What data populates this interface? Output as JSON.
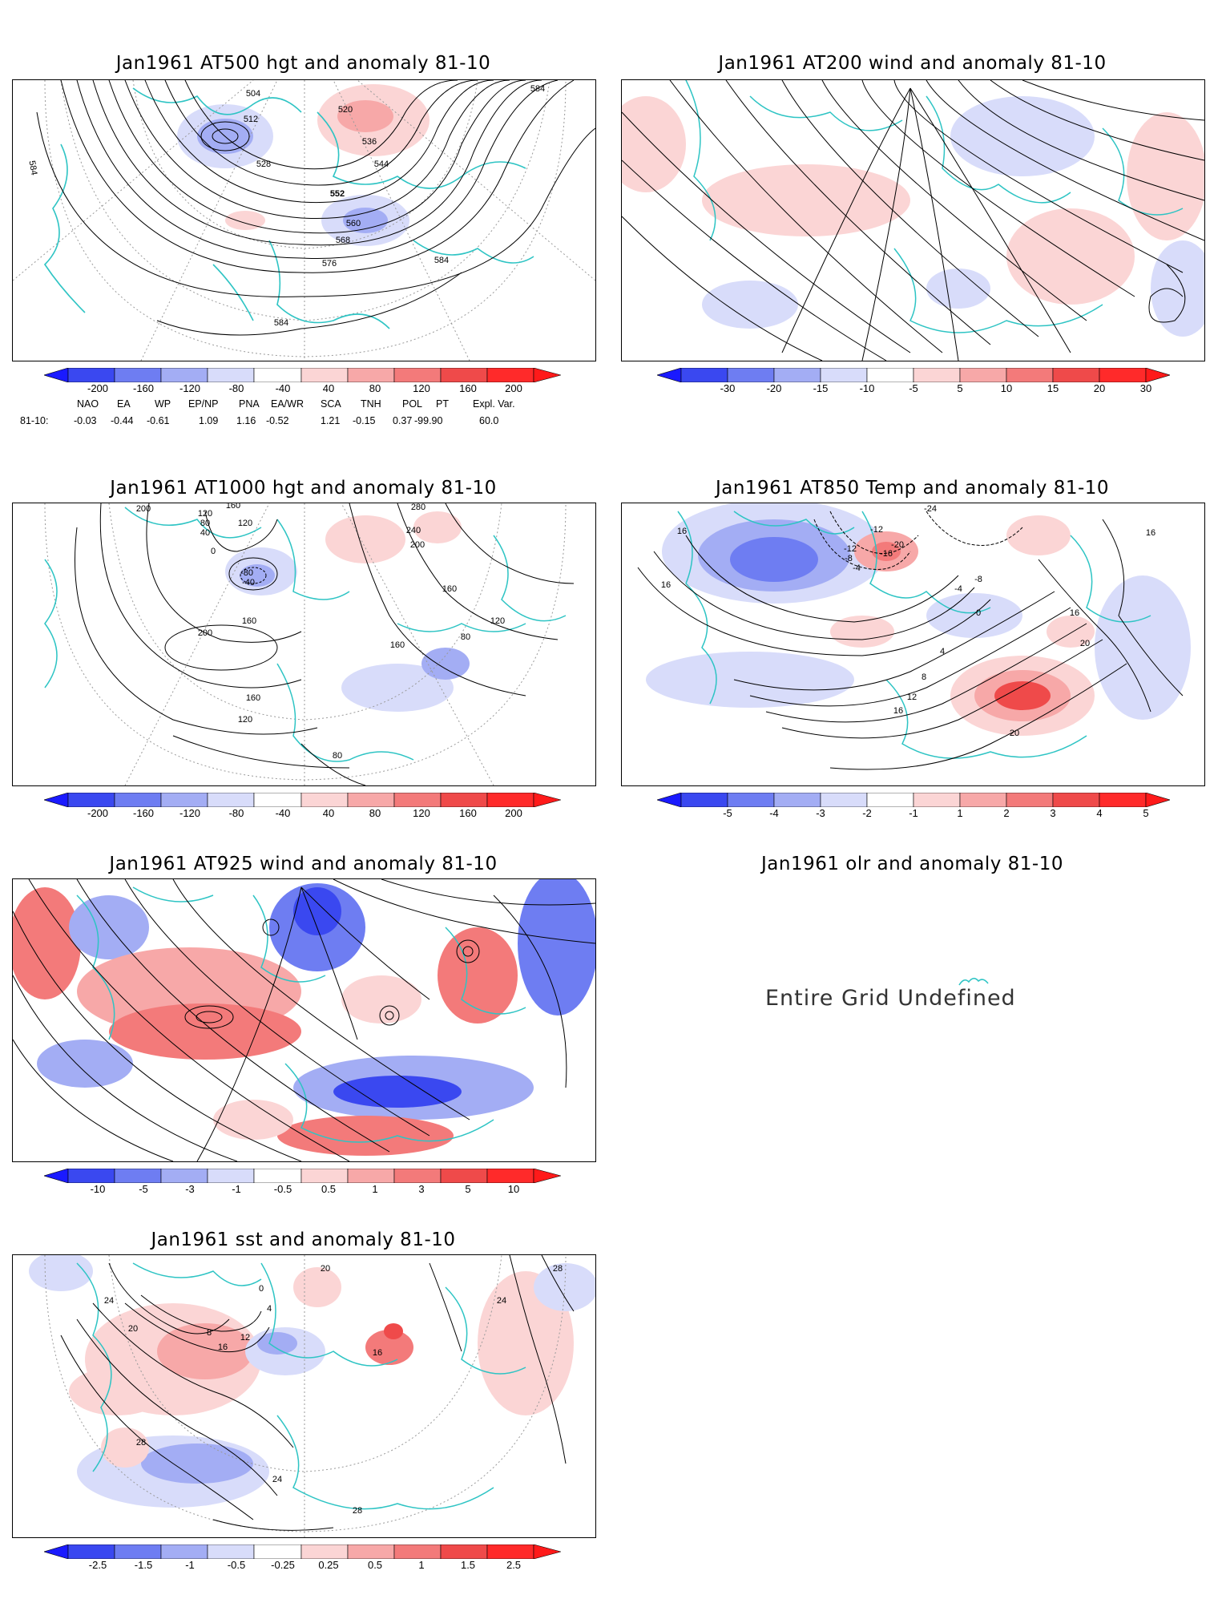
{
  "panels": [
    {
      "id": "p1",
      "title": "Jan1961 AT500 hgt and anomaly 81-10",
      "contour_labels": [
        "504",
        "512",
        "520",
        "528",
        "536",
        "544",
        "552",
        "560",
        "568",
        "576",
        "584",
        "584",
        "584",
        "584"
      ],
      "colorbar": [
        "-200",
        "-160",
        "-120",
        "-80",
        "-40",
        "40",
        "80",
        "120",
        "160",
        "200"
      ]
    },
    {
      "id": "p2",
      "title": "Jan1961 AT200 wind and anomaly 81-10",
      "colorbar": [
        "-30",
        "-20",
        "-15",
        "-10",
        "-5",
        "5",
        "10",
        "15",
        "20",
        "30"
      ]
    },
    {
      "id": "p3",
      "title": "Jan1961 AT1000 hgt and anomaly 81-10",
      "contour_labels": [
        "200",
        "160",
        "120",
        "80",
        "40",
        "0",
        "-80",
        "-40",
        "120",
        "280",
        "240",
        "200",
        "160",
        "160",
        "80",
        "120",
        "160",
        "200",
        "160",
        "120",
        "80"
      ],
      "colorbar": [
        "-200",
        "-160",
        "-120",
        "-80",
        "-40",
        "40",
        "80",
        "120",
        "160",
        "200"
      ]
    },
    {
      "id": "p4",
      "title": "Jan1961 AT850 Temp and anomaly 81-10",
      "contour_labels": [
        "16",
        "-24",
        "-12",
        "-20",
        "-16",
        "-12",
        "-8",
        "-4",
        "-8",
        "-4",
        "0",
        "4",
        "8",
        "12",
        "16",
        "20",
        "16",
        "20",
        "16",
        "16"
      ],
      "colorbar": [
        "-5",
        "-4",
        "-3",
        "-2",
        "-1",
        "1",
        "2",
        "3",
        "4",
        "5"
      ]
    },
    {
      "id": "p5",
      "title": "Jan1961 AT925 wind and anomaly 81-10",
      "colorbar": [
        "-10",
        "-5",
        "-3",
        "-1",
        "-0.5",
        "0.5",
        "1",
        "3",
        "5",
        "10"
      ]
    },
    {
      "id": "p6",
      "title": "Jan1961 olr and anomaly 81-10",
      "message": "Entire Grid Undefined"
    },
    {
      "id": "p7",
      "title": "Jan1961 sst and anomaly 81-10",
      "contour_labels": [
        "20",
        "0",
        "4",
        "8",
        "12",
        "16",
        "20",
        "24",
        "28",
        "28",
        "28",
        "24",
        "16",
        "24"
      ],
      "colorbar": [
        "-2.5",
        "-1.5",
        "-1",
        "-0.5",
        "-0.25",
        "0.25",
        "0.5",
        "1",
        "1.5",
        "2.5"
      ]
    }
  ],
  "teleconnections": {
    "headers": [
      "NAO",
      "EA",
      "WP",
      "EP/NP",
      "PNA",
      "EA/WR",
      "SCA",
      "TNH",
      "POL",
      "PT",
      "Expl. Var."
    ],
    "row_label": "81-10:",
    "values": [
      "-0.03",
      "-0.44",
      "-0.61",
      "1.09",
      "1.16",
      "-0.52",
      "1.21",
      "-0.15",
      "0.37",
      "-99.90",
      "60.0"
    ]
  },
  "colors": {
    "coast": "#2ec4c4",
    "contour": "#000000",
    "grid": "#9a9a9a",
    "scale": [
      "#1a1aff",
      "#3a48f0",
      "#6e7df2",
      "#a3adf4",
      "#d8dcfa",
      "#ffffff",
      "#fbd5d5",
      "#f7a8a8",
      "#f37a7a",
      "#ef4a4a",
      "#ff1a1a"
    ]
  }
}
